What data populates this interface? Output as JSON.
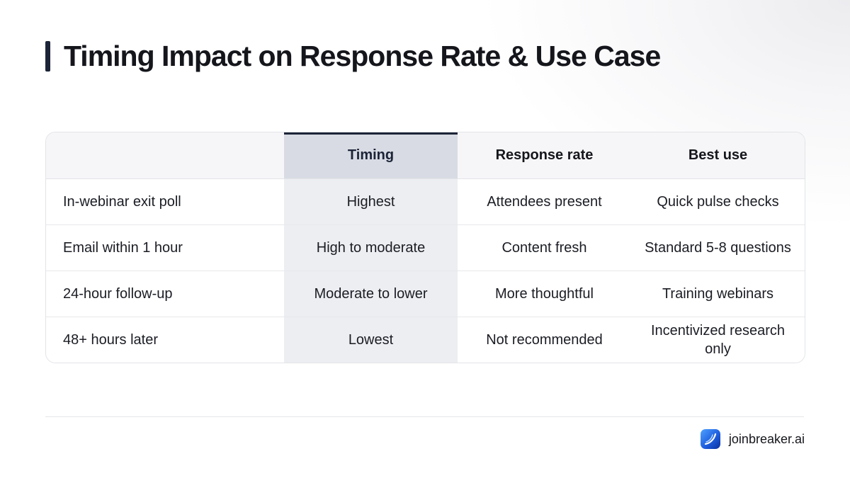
{
  "title": "Timing Impact on Response Rate & Use Case",
  "table": {
    "headers": [
      "",
      "Timing",
      "Response rate",
      "Best use"
    ],
    "rows": [
      [
        "In-webinar exit poll",
        "Highest",
        "Attendees present",
        "Quick pulse checks"
      ],
      [
        "Email within 1 hour",
        "High to moderate",
        "Content fresh",
        "Standard 5-8 questions"
      ],
      [
        "24-hour follow-up",
        "Moderate to lower",
        "More thoughtful",
        "Training webinars"
      ],
      [
        "48+ hours later",
        "Lowest",
        "Not recommended",
        "Incentivized research only"
      ]
    ]
  },
  "brand": {
    "name": "joinbreaker.ai",
    "icon": "swoosh-logo-icon"
  },
  "colors": {
    "accent": "#1c2438",
    "highlight_column": "#eceef2",
    "highlight_header": "#d8dbe3"
  }
}
